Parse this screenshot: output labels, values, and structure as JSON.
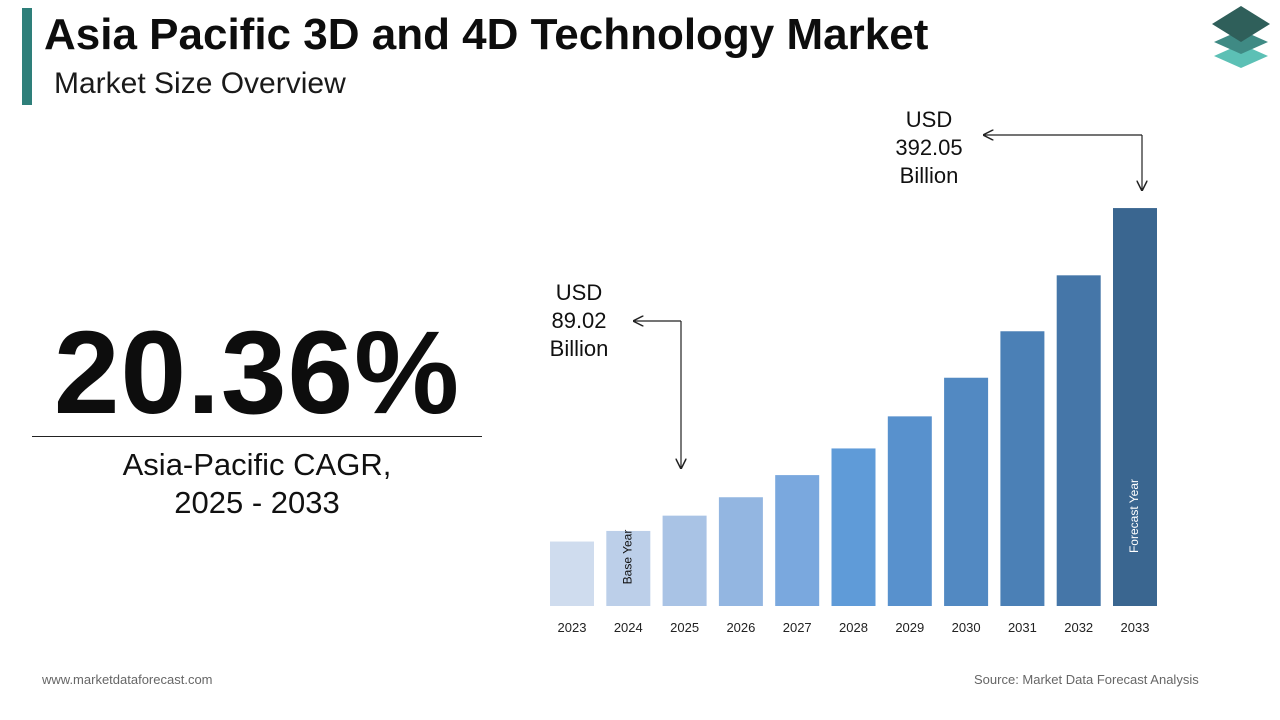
{
  "header": {
    "title": "Asia Pacific 3D and 4D Technology Market",
    "subtitle": "Market Size Overview"
  },
  "logo": {
    "icon": "stacked-layers-logo-icon",
    "colors": [
      "#2f5f5a",
      "#3f8a84",
      "#5cc0b5"
    ]
  },
  "cagr": {
    "value": "20.36%",
    "label_line1": "Asia-Pacific CAGR,",
    "label_line2": "2025 - 2033"
  },
  "chart_data": {
    "type": "bar",
    "categories": [
      "2023",
      "2024",
      "2025",
      "2026",
      "2027",
      "2028",
      "2029",
      "2030",
      "2031",
      "2032",
      "2033"
    ],
    "values": [
      63.5,
      73.95,
      89.02,
      107.15,
      128.97,
      155.23,
      186.84,
      224.89,
      270.68,
      325.79,
      392.05
    ],
    "unit": "USD Billion",
    "ylim": [
      0,
      400
    ],
    "colors": [
      "#cfdcee",
      "#bccfe9",
      "#a9c3e5",
      "#93b6e1",
      "#7aa8de",
      "#5f9bd8",
      "#5891cd",
      "#5289c2",
      "#4b80b6",
      "#4576a8",
      "#3a6690"
    ],
    "annotations": [
      {
        "lines": [
          "USD",
          "89.02",
          "Billion"
        ],
        "category": "2025"
      },
      {
        "lines": [
          "USD",
          "392.05",
          "Billion"
        ],
        "category": "2033"
      }
    ],
    "bar_labels": [
      {
        "category": "2024",
        "text": "Base Year"
      },
      {
        "category": "2033",
        "text": "Forecast Year"
      }
    ],
    "grid": false,
    "legend": "none"
  },
  "footer": {
    "website": "www.marketdataforecast.com",
    "source": "Source: Market Data Forecast Analysis"
  }
}
